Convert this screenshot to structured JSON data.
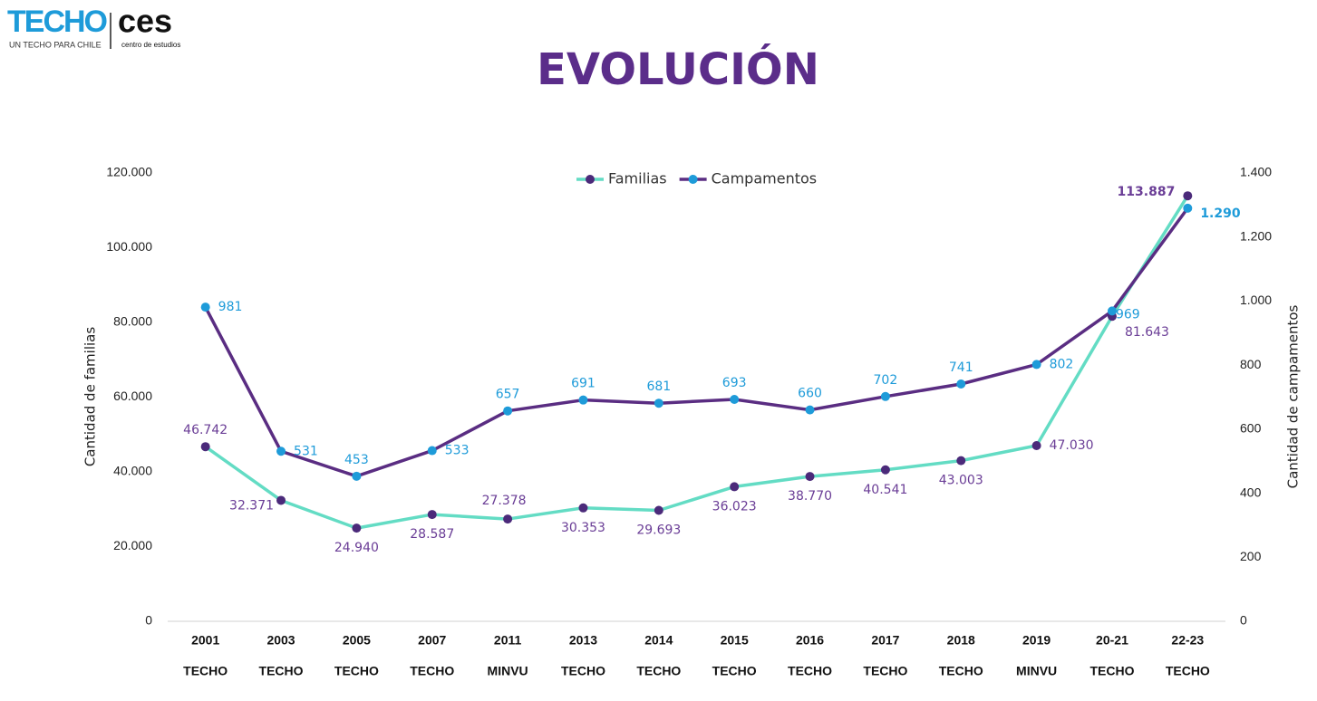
{
  "logos": {
    "techo": "TECHO",
    "techo_tagline": "UN TECHO PARA CHILE",
    "ces": "ces",
    "ces_tagline": "centro de estudios"
  },
  "chart_data": {
    "type": "line",
    "title": "EVOLUCIÓN",
    "y_label": "Cantidad de familias",
    "y2_label": "Cantidad de campamentos",
    "categories": [
      "2001",
      "2003",
      "2005",
      "2007",
      "2011",
      "2013",
      "2014",
      "2015",
      "2016",
      "2017",
      "2018",
      "2019",
      "20-21",
      "22-23"
    ],
    "category_sources": [
      "TECHO",
      "TECHO",
      "TECHO",
      "TECHO",
      "MINVU",
      "TECHO",
      "TECHO",
      "TECHO",
      "TECHO",
      "TECHO",
      "TECHO",
      "MINVU",
      "TECHO",
      "TECHO"
    ],
    "series": [
      {
        "name": "Familias",
        "color": "#63dcc4",
        "marker_color": "#4b2a7a",
        "label_color": "#6a3d96",
        "values": [
          46742,
          32371,
          24940,
          28587,
          27378,
          30353,
          29693,
          36023,
          38770,
          40541,
          43003,
          47030,
          81643,
          113887
        ],
        "value_labels": [
          "46.742",
          "32.371",
          "24.940",
          "28.587",
          "27.378",
          "30.353",
          "29.693",
          "36.023",
          "38.770",
          "40.541",
          "43.003",
          "47.030",
          "81.643",
          "113.887"
        ]
      },
      {
        "name": "Campamentos",
        "color": "#5a2d82",
        "marker_color": "#1e9bd9",
        "label_color": "#1e9bd9",
        "axis": "y2",
        "values": [
          981,
          531,
          453,
          533,
          657,
          691,
          681,
          693,
          660,
          702,
          741,
          802,
          969,
          1290
        ],
        "value_labels": [
          "981",
          "531",
          "453",
          "533",
          "657",
          "691",
          "681",
          "693",
          "660",
          "702",
          "741",
          "802",
          "969",
          "1.290"
        ]
      }
    ],
    "ylim": [
      0,
      120000
    ],
    "yticks": [
      0,
      {
        "value": 20000,
        "label": "20.000"
      },
      {
        "value": 40000,
        "label": "40.000"
      },
      {
        "value": 60000,
        "label": "60.000"
      },
      {
        "value": 80000,
        "label": "80.000"
      },
      {
        "value": 100000,
        "label": "100.000"
      },
      {
        "value": 120000,
        "label": "120.000"
      }
    ],
    "y2lim": [
      0,
      1400
    ],
    "y2ticks": [
      0,
      200,
      400,
      600,
      800,
      {
        "value": 1000,
        "label": "1.000"
      },
      {
        "value": 1200,
        "label": "1.200"
      },
      {
        "value": 1400,
        "label": "1.400"
      }
    ],
    "grid": false,
    "legend": "top"
  }
}
